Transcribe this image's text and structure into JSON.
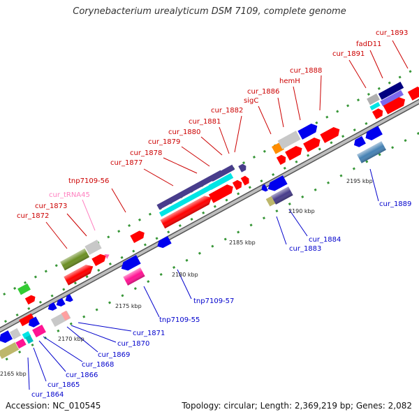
{
  "title": "Corynebacterium urealyticum DSM 7109, complete genome",
  "footer": {
    "accession": "Accession: NC_010545",
    "topology": "Topology: circular; Length: 2,369,219 bp; Genes: 2,082"
  },
  "colors": {
    "forward_label": "#cc0000",
    "reverse_label": "#0000cc",
    "rna_label": "#ff80c0",
    "backbone": "#888888",
    "tick": "#228b22"
  },
  "scale_labels": [
    "2165 kbp",
    "2170 kbp",
    "2175 kbp",
    "2180 kbp",
    "2185 kbp",
    "2190 kbp",
    "2195 kbp"
  ],
  "forward_genes": [
    "cur_1872",
    "cur_1873",
    "cur_tRNA45",
    "tnp7109-56",
    "cur_1877",
    "cur_1878",
    "cur_1879",
    "cur_1880",
    "cur_1881",
    "cur_1882",
    "sigC",
    "cur_1886",
    "hemH",
    "cur_1888",
    "cur_1891",
    "fadD11",
    "cur_1893"
  ],
  "reverse_genes": [
    "cur_1864",
    "cur_1865",
    "cur_1866",
    "cur_1868",
    "cur_1869",
    "cur_1870",
    "cur_1871",
    "tnp7109-55",
    "tnp7109-57",
    "cur_1883",
    "cur_1884",
    "cur_1889"
  ]
}
